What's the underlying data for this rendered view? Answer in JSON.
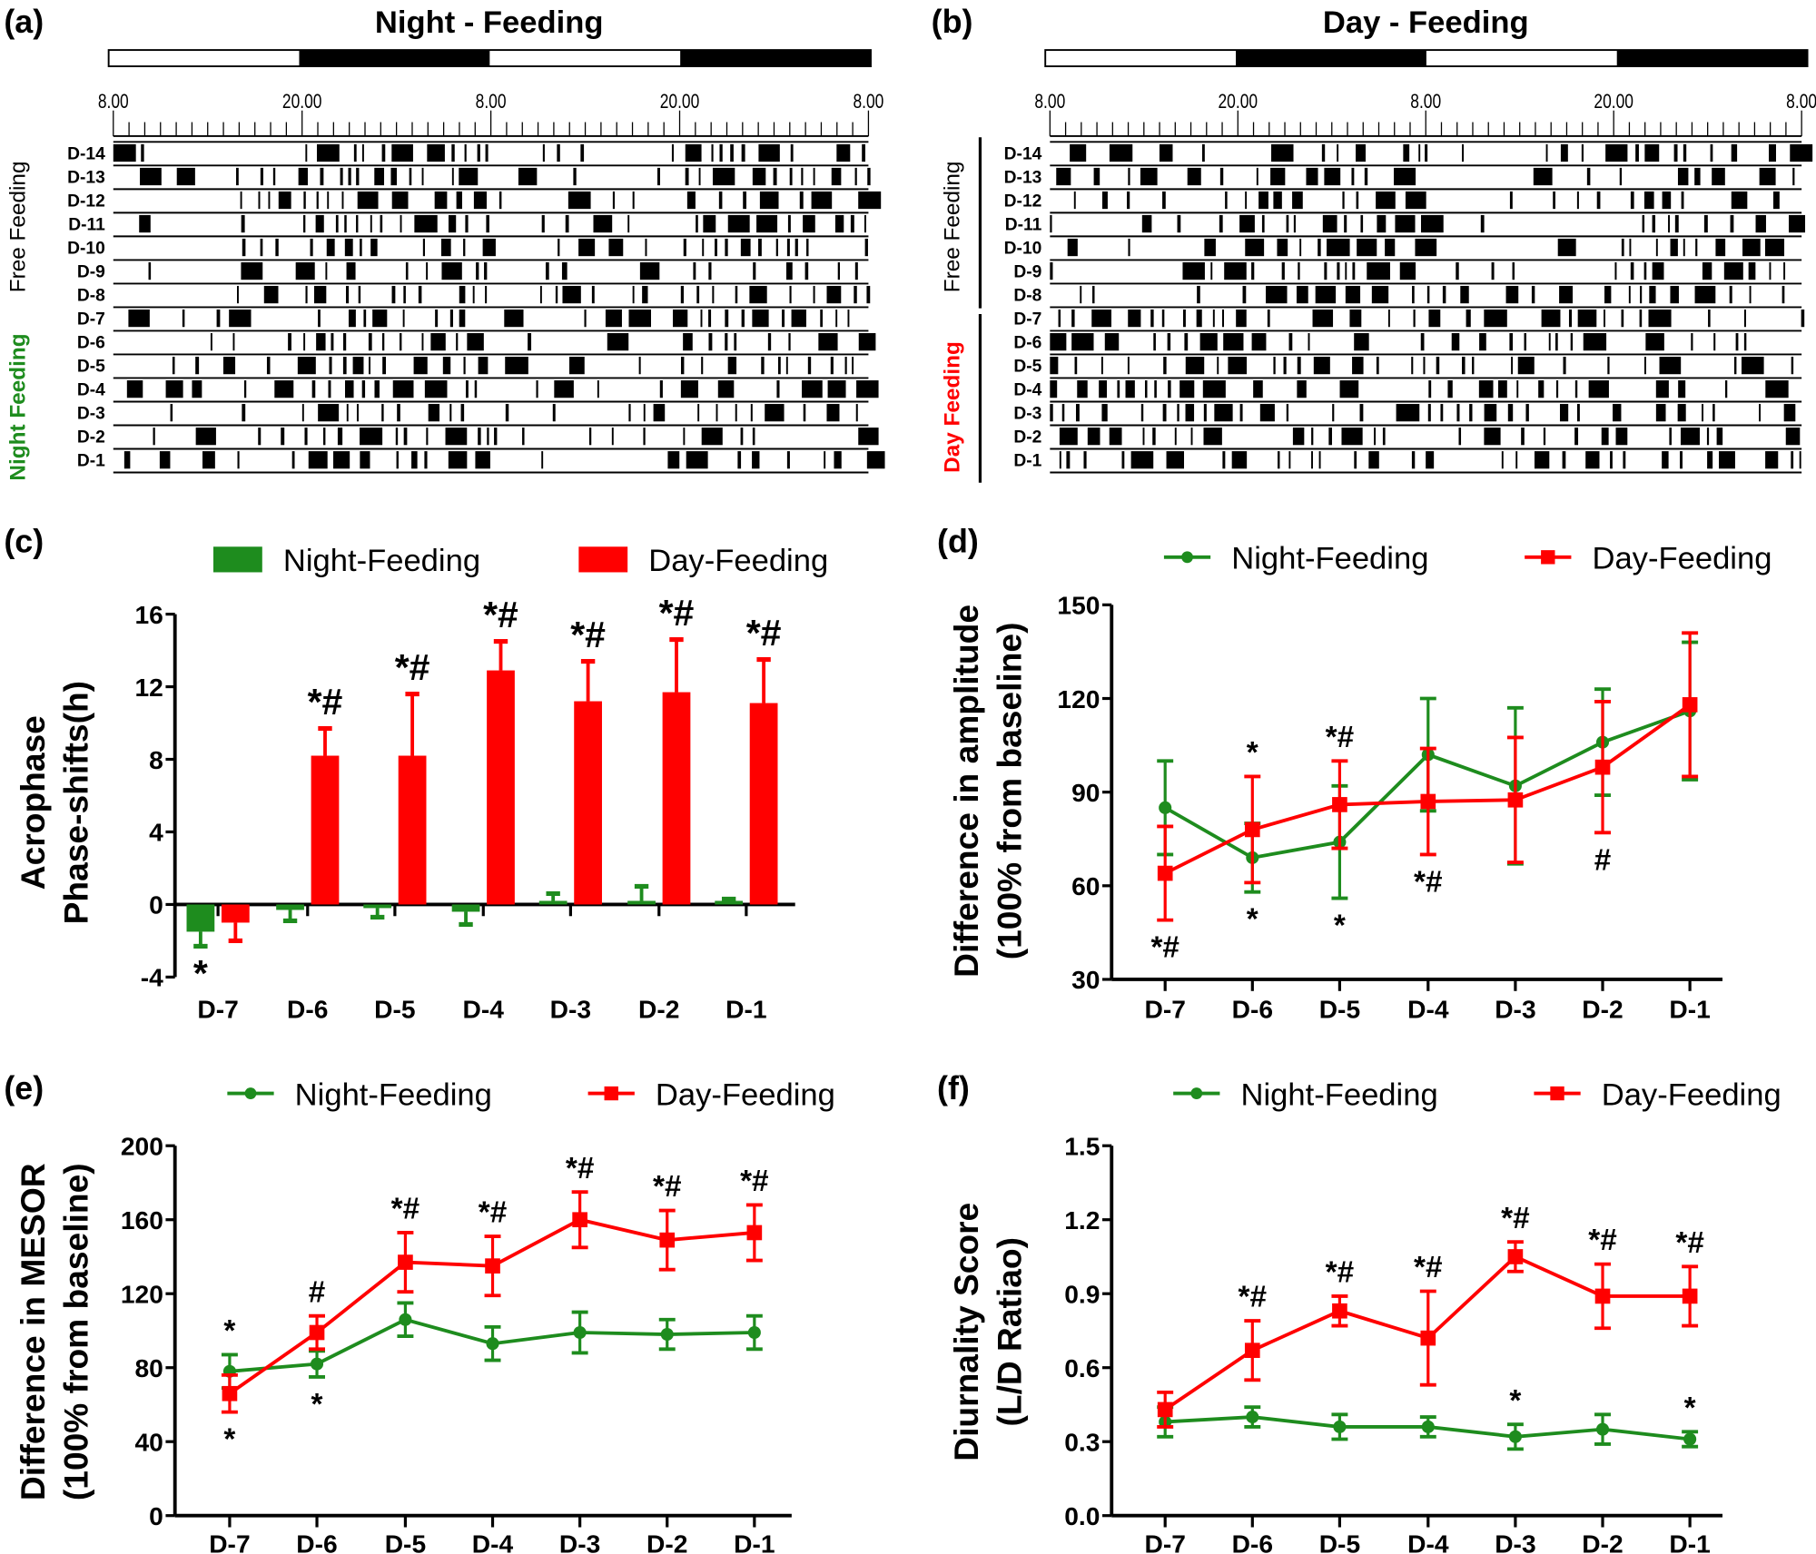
{
  "colors": {
    "night": "#1e8c1e",
    "day": "#ff0000",
    "axis": "#000000"
  },
  "panels": {
    "a": "(a)",
    "b": "(b)",
    "c": "(c)",
    "d": "(d)",
    "e": "(e)",
    "f": "(f)"
  },
  "actograms": [
    {
      "title": "Night - Feeding",
      "light_dark_bar": [
        "light",
        "dark",
        "light",
        "dark"
      ],
      "time_labels": [
        "8.00",
        "20.00",
        "8.00",
        "20.00",
        "8.00"
      ],
      "rows": [
        "D-14",
        "D-13",
        "D-12",
        "D-11",
        "D-10",
        "D-9",
        "D-8",
        "D-7",
        "D-6",
        "D-5",
        "D-4",
        "D-3",
        "D-2",
        "D-1"
      ],
      "groups": [
        {
          "label": "Free Feeding",
          "color": "#000000",
          "rows": [
            "D-14",
            "D-8"
          ]
        },
        {
          "label": "Night Feeding",
          "color": "#1e8c1e",
          "rows": [
            "D-7",
            "D-1"
          ]
        }
      ]
    },
    {
      "title": "Day - Feeding",
      "light_dark_bar": [
        "light",
        "dark",
        "light",
        "dark"
      ],
      "time_labels": [
        "8.00",
        "20.00",
        "8.00",
        "20.00",
        "8.00"
      ],
      "rows": [
        "D-14",
        "D-13",
        "D-12",
        "D-11",
        "D-10",
        "D-9",
        "D-8",
        "D-7",
        "D-6",
        "D-5",
        "D-4",
        "D-3",
        "D-2",
        "D-1"
      ],
      "groups": [
        {
          "label": "Free Feeding",
          "color": "#000000",
          "rows": [
            "D-14",
            "D-8"
          ]
        },
        {
          "label": "Day Feeding",
          "color": "#ff0000",
          "rows": [
            "D-7",
            "D-1"
          ]
        }
      ]
    }
  ],
  "chart_data": [
    {
      "panel": "c",
      "type": "bar",
      "ylabel": [
        "Acrophase",
        "Phase-shifts(h)"
      ],
      "ylim": [
        -4,
        16
      ],
      "yticks": [
        "-4",
        "0",
        "4",
        "8",
        "12",
        "16"
      ],
      "categories": [
        "D-7",
        "D-6",
        "D-5",
        "D-4",
        "D-3",
        "D-2",
        "D-1"
      ],
      "legend": "top",
      "series": [
        {
          "name": "Night-Feeding",
          "color": "#1e8c1e",
          "values": [
            -1.5,
            -0.3,
            -0.2,
            -0.4,
            0.2,
            0.2,
            0.2
          ],
          "errors": [
            0.8,
            0.6,
            0.5,
            0.7,
            0.4,
            0.8,
            0.1
          ]
        },
        {
          "name": "Day-Feeding",
          "color": "#ff0000",
          "values": [
            -1.0,
            8.2,
            8.2,
            12.9,
            11.2,
            11.7,
            11.1
          ],
          "errors": [
            1.0,
            1.5,
            3.4,
            1.6,
            2.2,
            2.9,
            2.4
          ]
        }
      ],
      "annotations": [
        {
          "category": "D-7",
          "series": 0,
          "position": "below",
          "text": "*"
        },
        {
          "category": "D-6",
          "series": 1,
          "position": "above",
          "text": "*#"
        },
        {
          "category": "D-5",
          "series": 1,
          "position": "above",
          "text": "*#"
        },
        {
          "category": "D-4",
          "series": 1,
          "position": "above",
          "text": "*#"
        },
        {
          "category": "D-3",
          "series": 1,
          "position": "above",
          "text": "*#"
        },
        {
          "category": "D-2",
          "series": 1,
          "position": "above",
          "text": "*#"
        },
        {
          "category": "D-1",
          "series": 1,
          "position": "above",
          "text": "*#"
        }
      ]
    },
    {
      "panel": "d",
      "type": "line",
      "ylabel": [
        "Difference in amplitude",
        "(100% from baseline)"
      ],
      "ylim": [
        30,
        150
      ],
      "yticks": [
        "30",
        "60",
        "90",
        "120",
        "150"
      ],
      "categories": [
        "D-7",
        "D-6",
        "D-5",
        "D-4",
        "D-3",
        "D-2",
        "D-1"
      ],
      "legend": "top",
      "series": [
        {
          "name": "Night-Feeding",
          "color": "#1e8c1e",
          "marker": "circle",
          "values": [
            85,
            69,
            74,
            102,
            92,
            106,
            116
          ],
          "errors": [
            15,
            11,
            18,
            18,
            25,
            17,
            22
          ]
        },
        {
          "name": "Day-Feeding",
          "color": "#ff0000",
          "marker": "square",
          "values": [
            64,
            78,
            86,
            87,
            87.5,
            98,
            118
          ],
          "errors": [
            15,
            17,
            14,
            17,
            20,
            21,
            23
          ]
        }
      ],
      "annotations": [
        {
          "category": "D-6",
          "series": 1,
          "position": "above",
          "text": "*"
        },
        {
          "category": "D-5",
          "series": 1,
          "position": "above",
          "text": "*#"
        },
        {
          "category": "D-7",
          "series": 1,
          "position": "below",
          "text": "*#"
        },
        {
          "category": "D-6",
          "series": 0,
          "position": "below",
          "text": "*"
        },
        {
          "category": "D-5",
          "series": 0,
          "position": "below",
          "text": "*"
        },
        {
          "category": "D-4",
          "series": 1,
          "position": "below",
          "text": "*#"
        },
        {
          "category": "D-2",
          "series": 1,
          "position": "below",
          "text": "#"
        }
      ]
    },
    {
      "panel": "e",
      "type": "line",
      "ylabel": [
        "Difference in MESOR",
        "(100% from baseline)"
      ],
      "ylim": [
        0,
        200
      ],
      "yticks": [
        "0",
        "40",
        "80",
        "120",
        "160",
        "200"
      ],
      "categories": [
        "D-7",
        "D-6",
        "D-5",
        "D-4",
        "D-3",
        "D-2",
        "D-1"
      ],
      "legend": "top",
      "series": [
        {
          "name": "Night-Feeding",
          "color": "#1e8c1e",
          "marker": "circle",
          "values": [
            78,
            82,
            106,
            93,
            99,
            98,
            99
          ],
          "errors": [
            9,
            7,
            9,
            9,
            11,
            8,
            9
          ]
        },
        {
          "name": "Day-Feeding",
          "color": "#ff0000",
          "marker": "square",
          "values": [
            66,
            99,
            137,
            135,
            160,
            149,
            153
          ],
          "errors": [
            10,
            9,
            16,
            16,
            15,
            16,
            15
          ]
        }
      ],
      "annotations": [
        {
          "category": "D-7",
          "series": 0,
          "position": "above",
          "text": "*"
        },
        {
          "category": "D-7",
          "series": 1,
          "position": "below",
          "text": "*"
        },
        {
          "category": "D-6",
          "series": 1,
          "position": "above",
          "text": "#"
        },
        {
          "category": "D-6",
          "series": 0,
          "position": "below",
          "text": "*"
        },
        {
          "category": "D-5",
          "series": 1,
          "position": "above",
          "text": "*#"
        },
        {
          "category": "D-4",
          "series": 1,
          "position": "above",
          "text": "*#"
        },
        {
          "category": "D-3",
          "series": 1,
          "position": "above",
          "text": "*#"
        },
        {
          "category": "D-2",
          "series": 1,
          "position": "above",
          "text": "*#"
        },
        {
          "category": "D-1",
          "series": 1,
          "position": "above",
          "text": "*#"
        }
      ]
    },
    {
      "panel": "f",
      "type": "line",
      "ylabel": [
        "Diurnality Score",
        "(L/D Ratiao)"
      ],
      "ylim": [
        0,
        1.5
      ],
      "yticks": [
        "0.0",
        "0.3",
        "0.6",
        "0.9",
        "1.2",
        "1.5"
      ],
      "categories": [
        "D-7",
        "D-6",
        "D-5",
        "D-4",
        "D-3",
        "D-2",
        "D-1"
      ],
      "legend": "top",
      "series": [
        {
          "name": "Night-Feeding",
          "color": "#1e8c1e",
          "marker": "circle",
          "values": [
            0.38,
            0.4,
            0.36,
            0.36,
            0.32,
            0.35,
            0.31
          ],
          "errors": [
            0.06,
            0.04,
            0.05,
            0.04,
            0.05,
            0.06,
            0.03
          ]
        },
        {
          "name": "Day-Feeding",
          "color": "#ff0000",
          "marker": "square",
          "values": [
            0.43,
            0.67,
            0.83,
            0.72,
            1.05,
            0.89,
            0.89
          ],
          "errors": [
            0.07,
            0.12,
            0.06,
            0.19,
            0.06,
            0.13,
            0.12
          ]
        }
      ],
      "annotations": [
        {
          "category": "D-6",
          "series": 1,
          "position": "above",
          "text": "*#"
        },
        {
          "category": "D-5",
          "series": 1,
          "position": "above",
          "text": "*#"
        },
        {
          "category": "D-4",
          "series": 1,
          "position": "above",
          "text": "*#"
        },
        {
          "category": "D-3",
          "series": 1,
          "position": "above",
          "text": "*#"
        },
        {
          "category": "D-2",
          "series": 1,
          "position": "above",
          "text": "*#"
        },
        {
          "category": "D-1",
          "series": 1,
          "position": "above",
          "text": "*#"
        },
        {
          "category": "D-3",
          "series": 0,
          "position": "above",
          "text": "*"
        },
        {
          "category": "D-1",
          "series": 0,
          "position": "above",
          "text": "*"
        }
      ]
    }
  ]
}
